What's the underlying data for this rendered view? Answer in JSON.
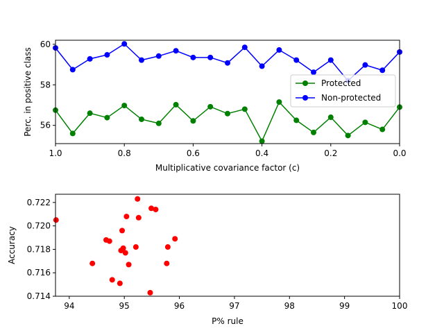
{
  "chart_data": [
    {
      "type": "line",
      "xlabel": "Multiplicative covariance factor (c)",
      "ylabel": "Perc. in positive class",
      "x": [
        1.0,
        0.95,
        0.9,
        0.85,
        0.8,
        0.75,
        0.7,
        0.65,
        0.6,
        0.55,
        0.5,
        0.45,
        0.4,
        0.35,
        0.3,
        0.25,
        0.2,
        0.15,
        0.1,
        0.05,
        0.0
      ],
      "xlim": [
        1.0,
        0.0
      ],
      "ylim": [
        55.1,
        60.2
      ],
      "xticks": [
        1.0,
        0.8,
        0.6,
        0.4,
        0.2,
        0.0
      ],
      "xtick_labels": [
        "1.0",
        "0.8",
        "0.6",
        "0.4",
        "0.2",
        "0.0"
      ],
      "yticks": [
        56,
        58,
        60
      ],
      "ytick_labels": [
        "56",
        "58",
        "60"
      ],
      "legend_position": "center-right",
      "grid": false,
      "series": [
        {
          "name": "Protected",
          "color": "#008000",
          "values": [
            56.75,
            55.6,
            56.6,
            56.38,
            56.98,
            56.3,
            56.1,
            57.02,
            56.22,
            56.92,
            56.58,
            56.8,
            55.22,
            57.15,
            56.25,
            55.65,
            56.4,
            55.5,
            56.15,
            55.8,
            56.9
          ]
        },
        {
          "name": "Non-protected",
          "color": "#0000ff",
          "values": [
            59.82,
            58.75,
            59.28,
            59.48,
            60.02,
            59.22,
            59.42,
            59.68,
            59.35,
            59.35,
            59.08,
            59.85,
            58.92,
            59.72,
            59.22,
            58.62,
            59.22,
            58.2,
            58.98,
            58.72,
            59.62
          ]
        }
      ]
    },
    {
      "type": "scatter",
      "xlabel": "P% rule",
      "ylabel": "Accuracy",
      "xlim": [
        93.75,
        100
      ],
      "ylim": [
        0.714,
        0.7227
      ],
      "xticks": [
        94,
        95,
        96,
        97,
        98,
        99,
        100
      ],
      "xtick_labels": [
        "94",
        "95",
        "96",
        "97",
        "98",
        "99",
        "100"
      ],
      "yticks": [
        0.714,
        0.716,
        0.718,
        0.72,
        0.722
      ],
      "ytick_labels": [
        "0.714",
        "0.716",
        "0.718",
        "0.720",
        "0.722"
      ],
      "grid": false,
      "color": "#ff0000",
      "points": [
        {
          "x": 93.76,
          "y": 0.7205
        },
        {
          "x": 94.42,
          "y": 0.7168
        },
        {
          "x": 94.67,
          "y": 0.7188
        },
        {
          "x": 94.73,
          "y": 0.7187
        },
        {
          "x": 94.78,
          "y": 0.7154
        },
        {
          "x": 94.92,
          "y": 0.7151
        },
        {
          "x": 94.94,
          "y": 0.7179
        },
        {
          "x": 94.96,
          "y": 0.7196
        },
        {
          "x": 94.98,
          "y": 0.7181
        },
        {
          "x": 95.02,
          "y": 0.7177
        },
        {
          "x": 95.04,
          "y": 0.7208
        },
        {
          "x": 95.08,
          "y": 0.7167
        },
        {
          "x": 95.21,
          "y": 0.7182
        },
        {
          "x": 95.24,
          "y": 0.7223
        },
        {
          "x": 95.26,
          "y": 0.7207
        },
        {
          "x": 95.47,
          "y": 0.7143
        },
        {
          "x": 95.49,
          "y": 0.7215
        },
        {
          "x": 95.57,
          "y": 0.7214
        },
        {
          "x": 95.77,
          "y": 0.7168
        },
        {
          "x": 95.79,
          "y": 0.7182
        },
        {
          "x": 95.92,
          "y": 0.7189
        }
      ]
    }
  ]
}
